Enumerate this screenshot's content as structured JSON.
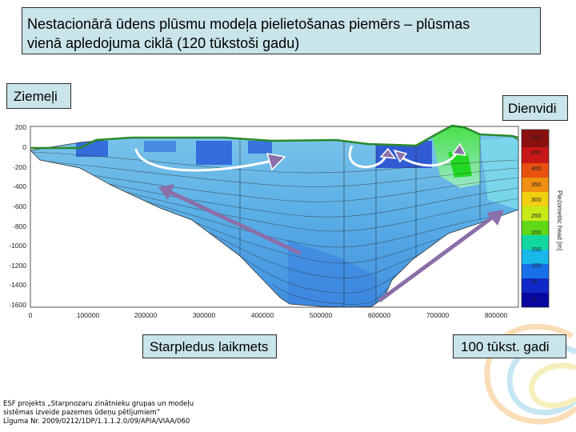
{
  "title": {
    "line1": "Nestacionārā ūdens plūsmu modeļa pielietošanas piemērs – plūsmas",
    "line2": "vienā apledojuma ciklā (120 tūkstoši gadu)"
  },
  "labels": {
    "north": "Ziemeļi",
    "south": "Dienvidi",
    "glacial": "Starpledus laikmets",
    "age": "100 tūkst. gadi"
  },
  "axes": {
    "y_ticks": [
      "200",
      "0",
      "-200",
      "-400",
      "-600",
      "-800",
      "-1000",
      "-1200",
      "-1400",
      "-1600"
    ],
    "x_ticks": [
      "0",
      "100000",
      "200000",
      "300000",
      "400000",
      "500000",
      "600000",
      "700000",
      "800000"
    ]
  },
  "colorbar": {
    "title": "Piezometric head [m]",
    "ticks": [
      "500",
      "450",
      "400",
      "350",
      "300",
      "250",
      "200",
      "150",
      "100",
      "50",
      "0"
    ],
    "colors": [
      "#8b1010",
      "#c81818",
      "#e85010",
      "#f09010",
      "#f0d010",
      "#c8e818",
      "#60d818",
      "#10d8a0",
      "#18b8e8",
      "#1870e8",
      "#1028c8",
      "#0808a0"
    ]
  },
  "footer": {
    "line1": "ESF projekts „Starpnozaru zinātnieku grupas un modeļu",
    "line2": "sistēmas izveide pazemes ūdeņu pētījumiem”",
    "line3": "Līguma Nr. 2009/0212/1DP/1.1.1.2.0/09/APIA/VIAA/060"
  },
  "colors": {
    "label_bg": "#c9e4ea",
    "arrow": "#8a6fa8",
    "model_water": "#5fb8e6",
    "deep_water": "#2a5fd8",
    "recharge": "#44d844"
  }
}
